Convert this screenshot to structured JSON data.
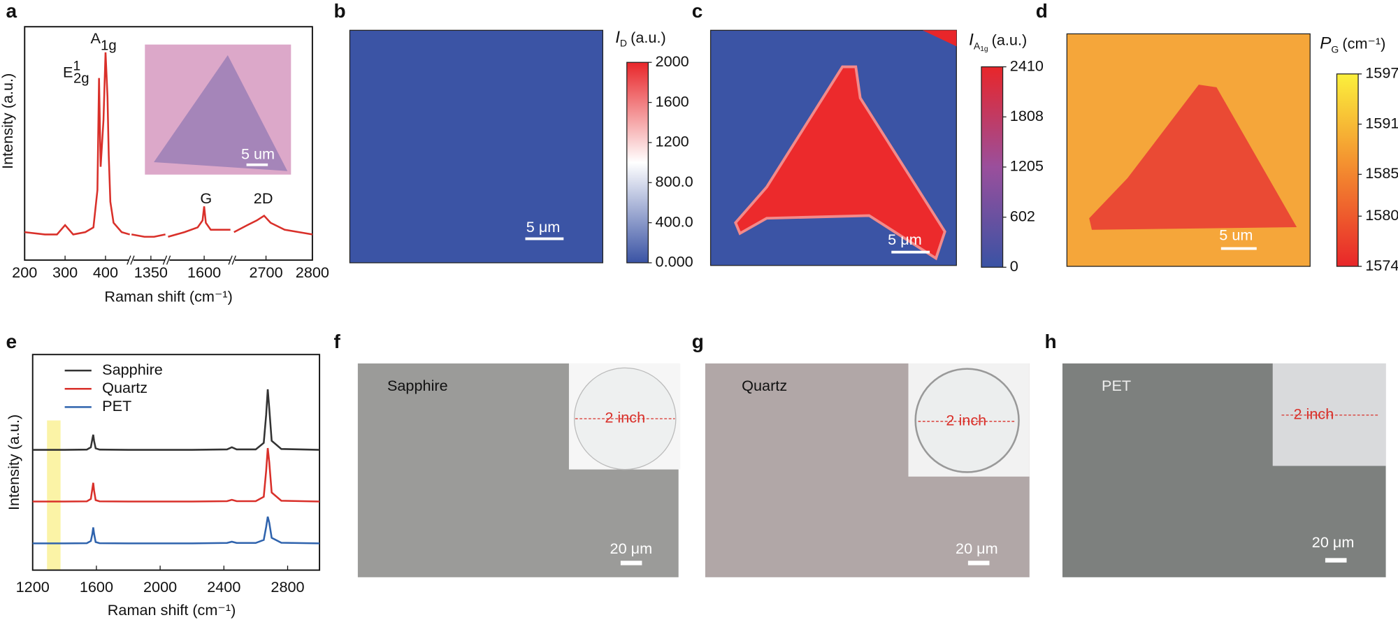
{
  "panel_labels": [
    "a",
    "b",
    "c",
    "d",
    "e",
    "f",
    "g",
    "h"
  ],
  "chart_data": [
    {
      "type": "line",
      "y_label": "Intensity (a.u.)",
      "x_label": "Raman shift (cm⁻¹)",
      "color": "#d9302a",
      "ylim": [
        0,
        100
      ],
      "annotations": [
        {
          "text": "A",
          "sub": "1g"
        },
        {
          "text": "E",
          "sup": "1",
          "sub": "2g"
        },
        {
          "text": "G"
        },
        {
          "text": "2D"
        }
      ],
      "inset_scale_bar": "5 um",
      "segments": [
        {
          "xlim": [
            200,
            460
          ],
          "xticks": [
            200,
            300,
            400
          ],
          "x": [
            200,
            250,
            280,
            300,
            320,
            350,
            370,
            380,
            384,
            388,
            395,
            400,
            405,
            408,
            412,
            420,
            440,
            460
          ],
          "values": [
            12,
            11,
            11,
            15,
            11,
            12,
            14,
            30,
            78,
            40,
            60,
            89,
            70,
            45,
            25,
            16,
            12,
            11
          ]
        },
        {
          "xlim": [
            1290,
            1395
          ],
          "xticks": [
            1350
          ],
          "x": [
            1290,
            1330,
            1360,
            1395
          ],
          "values": [
            11,
            10,
            10,
            11
          ]
        },
        {
          "xlim": [
            1490,
            1680
          ],
          "xticks": [
            1600
          ],
          "x": [
            1490,
            1540,
            1580,
            1595,
            1600,
            1605,
            1620,
            1680
          ],
          "values": [
            10,
            12,
            14,
            17,
            23,
            16,
            13,
            13
          ]
        },
        {
          "xlim": [
            2631,
            2800
          ],
          "xticks": [
            2700,
            2800
          ],
          "x": [
            2631,
            2660,
            2680,
            2696,
            2710,
            2740,
            2800
          ],
          "values": [
            12,
            15,
            17,
            19,
            16,
            13,
            11
          ]
        }
      ]
    },
    {
      "type": "line",
      "y_label": "Intensity (a.u.)",
      "x_label": "Raman shift (cm⁻¹)",
      "xlim": [
        1200,
        3000
      ],
      "xticks": [
        1200,
        1600,
        2000,
        2400,
        2800
      ],
      "ylim": [
        0,
        100
      ],
      "legend": "upper left",
      "highlight": {
        "range": [
          1290,
          1375
        ],
        "color": "#fbf3a6"
      },
      "x": [
        1200,
        1400,
        1540,
        1565,
        1575,
        1580,
        1585,
        1595,
        1620,
        1800,
        2200,
        2420,
        2450,
        2480,
        2600,
        2650,
        2665,
        2675,
        2685,
        2700,
        2760,
        3000
      ],
      "series": [
        {
          "name": "Sapphire",
          "color": "#333333",
          "values": [
            55.8,
            55.8,
            55.9,
            57,
            61,
            62.8,
            60,
            56.5,
            55.9,
            55.8,
            55.8,
            56,
            57,
            56,
            56,
            59,
            72,
            83.9,
            75,
            60,
            56.2,
            55.8
          ]
        },
        {
          "name": "Quartz",
          "color": "#d9302a",
          "values": [
            31.8,
            31.8,
            31.9,
            33,
            38,
            40.5,
            37,
            32.5,
            31.9,
            31.8,
            31.8,
            32,
            32.6,
            32,
            32,
            34,
            46,
            56.6,
            50,
            36,
            32.2,
            31.8
          ]
        },
        {
          "name": "PET",
          "color": "#2f63ad",
          "values": [
            12.4,
            12.4,
            12.5,
            13.5,
            17,
            19.8,
            17,
            13,
            12.5,
            12.4,
            12.4,
            12.6,
            13.2,
            12.6,
            12.6,
            14,
            20,
            24.8,
            22,
            15,
            12.7,
            12.4
          ]
        }
      ]
    }
  ],
  "maps": [
    {
      "title": {
        "symbol": "I",
        "sub": "D",
        "unit": "(a.u.)"
      },
      "scale_bar": "5 μm",
      "range": [
        0,
        2000
      ],
      "ticks": [
        {
          "value": 0,
          "label": "0.000"
        },
        {
          "value": 400,
          "label": "400.0"
        },
        {
          "value": 800,
          "label": "800.0"
        },
        1200,
        1600,
        2000
      ],
      "colors": [
        "#3a53a4",
        "#ffffff",
        "#e8262a"
      ]
    },
    {
      "title": {
        "symbol": "I",
        "sub": "A",
        "subsub": "1g",
        "unit": "(a.u.)"
      },
      "scale_bar": "5 μm",
      "range": [
        0,
        2410
      ],
      "ticks": [
        0,
        602,
        1205,
        1808,
        2410
      ],
      "colors": [
        "#3a53a4",
        "#9a4f9c",
        "#e8262a"
      ]
    },
    {
      "title": {
        "symbol": "P",
        "sub": "G",
        "unit": "(cm⁻¹)"
      },
      "scale_bar": "5 um",
      "range": [
        1574,
        1597
      ],
      "ticks": [
        1574,
        1580,
        1585,
        1591,
        1597
      ],
      "colors": [
        "#e8262a",
        "#f38a2f",
        "#fbf03c"
      ]
    }
  ],
  "micrographs": [
    {
      "substrate": "Sapphire",
      "inset": "2 inch",
      "scale_bar": "20 μm"
    },
    {
      "substrate": "Quartz",
      "inset": "2 inch",
      "scale_bar": "20 μm"
    },
    {
      "substrate": "PET",
      "inset": "2 inch",
      "scale_bar": "20 μm"
    }
  ]
}
